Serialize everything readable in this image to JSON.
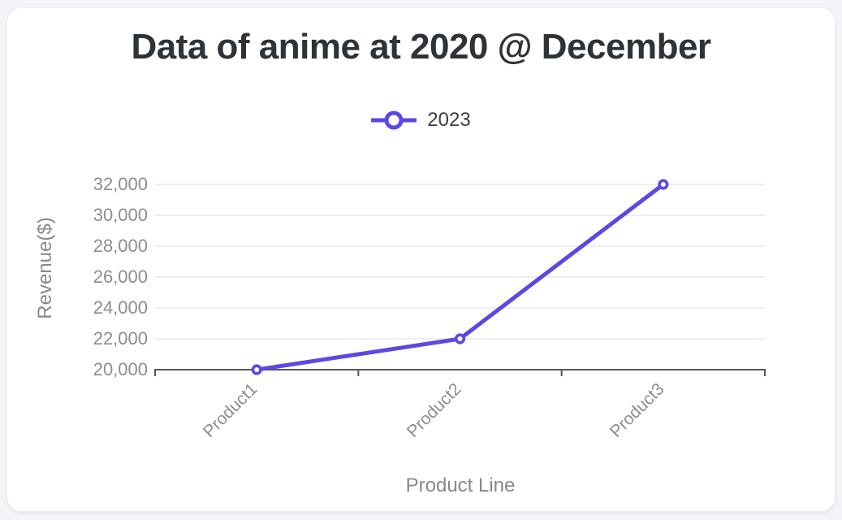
{
  "window": {
    "background": "#f2f4f8",
    "card_background": "#ffffff",
    "card_border": "#eceef2"
  },
  "chart_data": {
    "type": "line",
    "title": "Data of anime at 2020 @ December",
    "xlabel": "Product Line",
    "ylabel": "Revenue($)",
    "categories": [
      "Product1",
      "Product2",
      "Product3"
    ],
    "series": [
      {
        "name": "2023",
        "values": [
          20000,
          22000,
          32000
        ],
        "color": "#5a49e2",
        "marker": "open-circle"
      }
    ],
    "ylim": [
      20000,
      32000
    ],
    "ytick_step": 2000,
    "ytick_labels": [
      "20,000",
      "22,000",
      "24,000",
      "26,000",
      "28,000",
      "30,000",
      "32,000"
    ],
    "legend_position": "top",
    "grid": true,
    "colors": {
      "accent": "#5a49e2",
      "grid": "#e7e8f3",
      "axis": "#54575c",
      "tick_text": "#8a8d92",
      "axis_title_text": "#85888d",
      "title_text": "#2e333a",
      "legend_text": "#3c4046"
    }
  }
}
